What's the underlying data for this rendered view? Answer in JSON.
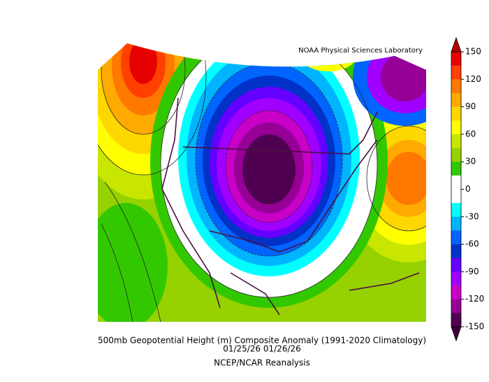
{
  "map": {
    "credit": "NOAA Physical Sciences Laboratory",
    "title": "500mb Geopotential Height (m) Composite Anomaly (1991-2020 Climatology)",
    "dates": "01/25/26 01/26/26",
    "source": "NCEP/NCAR Reanalysis"
  },
  "colorbar": {
    "lim": [
      -150,
      150
    ],
    "ticks": [
      150,
      120,
      90,
      60,
      30,
      0,
      -30,
      -60,
      -90,
      -120,
      -150
    ],
    "colors": [
      "#e60000",
      "#ff4000",
      "#ff7800",
      "#ffaa00",
      "#ffd700",
      "#ffff00",
      "#c8e600",
      "#96d200",
      "#32c800",
      "#ffffff",
      "#ffffff",
      "#00ffff",
      "#00b4ff",
      "#0064ff",
      "#0032c8",
      "#6400ff",
      "#a000ff",
      "#c800c8",
      "#960096",
      "#500050"
    ],
    "over_color": "#b40000",
    "under_color": "#3c003c"
  }
}
